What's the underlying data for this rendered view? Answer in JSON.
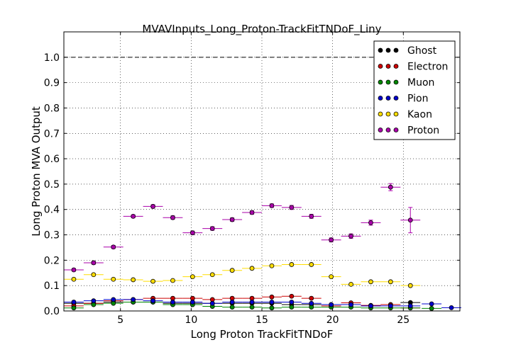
{
  "chart_data": {
    "type": "scatter",
    "title": "MVAVInputs_Long_Proton-TrackFitTNDoF_Liny",
    "xlabel": "Long Proton TrackFitTNDoF",
    "ylabel": "Long Proton MVA Output",
    "xlim": [
      1,
      29
    ],
    "ylim": [
      0,
      1.1
    ],
    "x_ticks": [
      5,
      10,
      15,
      20,
      25
    ],
    "y_ticks": [
      0.0,
      0.1,
      0.2,
      0.3,
      0.4,
      0.5,
      0.6,
      0.7,
      0.8,
      0.9,
      1.0
    ],
    "y_tick_labels": [
      "0.0",
      "0.1",
      "0.2",
      "0.3",
      "0.4",
      "0.5",
      "0.6",
      "0.7",
      "0.8",
      "0.9",
      "1.0"
    ],
    "grid": true,
    "reference_line": 1.0,
    "legend_position": "upper right",
    "bin_half_width": 0.7,
    "series": [
      {
        "name": "Ghost",
        "color": "#000000",
        "x": [
          1.7,
          3.1,
          4.5,
          5.9,
          7.3,
          8.7,
          10.1,
          11.5,
          12.9,
          14.3,
          15.7,
          17.1,
          18.5,
          19.9,
          21.3,
          22.7,
          24.1,
          25.5
        ],
        "y": [
          0.03,
          0.03,
          0.035,
          0.035,
          0.035,
          0.03,
          0.03,
          0.03,
          0.03,
          0.03,
          0.03,
          0.025,
          0.025,
          0.025,
          0.025,
          0.02,
          0.025,
          0.033
        ]
      },
      {
        "name": "Electron",
        "color": "#cc0000",
        "x": [
          1.7,
          3.1,
          4.5,
          5.9,
          7.3,
          8.7,
          10.1,
          11.5,
          12.9,
          14.3,
          15.7,
          17.1,
          18.5,
          19.9,
          21.3,
          22.7,
          24.1,
          25.5
        ],
        "y": [
          0.02,
          0.03,
          0.04,
          0.045,
          0.05,
          0.05,
          0.05,
          0.045,
          0.05,
          0.05,
          0.055,
          0.058,
          0.05,
          0.02,
          0.032,
          0.022,
          0.025,
          0.012
        ]
      },
      {
        "name": "Muon",
        "color": "#008800",
        "x": [
          1.7,
          3.1,
          4.5,
          5.9,
          7.3,
          8.7,
          10.1,
          11.5,
          12.9,
          14.3,
          15.7,
          17.1,
          18.5,
          19.9,
          21.3,
          22.7,
          24.1,
          25.5,
          27.0
        ],
        "y": [
          0.012,
          0.025,
          0.03,
          0.035,
          0.035,
          0.025,
          0.025,
          0.018,
          0.015,
          0.015,
          0.012,
          0.015,
          0.015,
          0.015,
          0.015,
          0.012,
          0.012,
          0.012,
          0.01
        ]
      },
      {
        "name": "Pion",
        "color": "#0000cc",
        "x": [
          1.7,
          3.1,
          4.5,
          5.9,
          7.3,
          8.7,
          10.1,
          11.5,
          12.9,
          14.3,
          15.7,
          17.1,
          18.5,
          19.9,
          21.3,
          22.7,
          24.1,
          25.5,
          27.0,
          28.4
        ],
        "y": [
          0.035,
          0.04,
          0.045,
          0.045,
          0.04,
          0.035,
          0.035,
          0.03,
          0.035,
          0.035,
          0.035,
          0.035,
          0.03,
          0.025,
          0.025,
          0.02,
          0.02,
          0.02,
          0.028,
          0.013
        ]
      },
      {
        "name": "Kaon",
        "color": "#ffdd00",
        "x": [
          1.7,
          3.1,
          4.5,
          5.9,
          7.3,
          8.7,
          10.1,
          11.5,
          12.9,
          14.3,
          15.7,
          17.1,
          18.5,
          19.9,
          21.3,
          22.7,
          24.1,
          25.5
        ],
        "y": [
          0.125,
          0.143,
          0.125,
          0.123,
          0.117,
          0.12,
          0.135,
          0.143,
          0.16,
          0.168,
          0.178,
          0.183,
          0.183,
          0.135,
          0.105,
          0.115,
          0.115,
          0.1
        ]
      },
      {
        "name": "Proton",
        "color": "#aa00aa",
        "x": [
          1.7,
          3.1,
          4.5,
          5.9,
          7.3,
          8.7,
          10.1,
          11.5,
          12.9,
          14.3,
          15.7,
          17.1,
          18.5,
          19.9,
          21.3,
          22.7,
          24.1,
          25.5
        ],
        "y": [
          0.162,
          0.19,
          0.252,
          0.373,
          0.412,
          0.368,
          0.308,
          0.325,
          0.36,
          0.388,
          0.415,
          0.408,
          0.373,
          0.28,
          0.295,
          0.348,
          0.488,
          0.358
        ],
        "yerr": [
          0.005,
          0.006,
          0.006,
          0.006,
          0.007,
          0.007,
          0.007,
          0.007,
          0.007,
          0.007,
          0.007,
          0.008,
          0.008,
          0.008,
          0.009,
          0.01,
          0.014,
          0.05
        ]
      }
    ]
  }
}
